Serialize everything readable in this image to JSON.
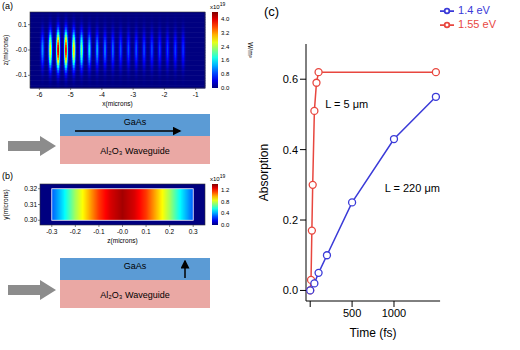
{
  "chart_data": [
    {
      "type": "heatmap",
      "panel": "(a)",
      "xlabel": "x(microns)",
      "ylabel": "z(microns)",
      "xlim": [
        -6.3,
        -0.7
      ],
      "xticks": [
        -6,
        -5,
        -4,
        -3,
        -2,
        -1
      ],
      "ylim": [
        -0.15,
        0.15
      ],
      "yticks": [
        0.1,
        {
          "value": 0,
          "label": "-0.0"
        },
        -0.1
      ],
      "colorbar_label": "W/m³",
      "colorbar_multiplier": "x10",
      "colorbar_exponent": "19",
      "colorbar_range": [
        0,
        4.4
      ],
      "colorbar_ticks": [
        {
          "value": 0,
          "label": "0.0"
        },
        0.8,
        1.6,
        2.4,
        3.2,
        {
          "value": 4,
          "label": "4.0"
        }
      ],
      "fringes": {
        "x": [
          -5.9,
          -5.65,
          -5.4,
          -5.15,
          -4.9,
          -4.65,
          -4.4,
          -4.15,
          -3.9,
          -3.65,
          -3.4,
          -3.15,
          -2.9,
          -2.65,
          -2.4,
          -2.15,
          -1.9,
          -1.65,
          -1.4
        ],
        "values": [
          1.2,
          2.8,
          4.3,
          4.1,
          3.0,
          2.2,
          1.6,
          1.3,
          1.1,
          1.0,
          0.9,
          0.9,
          0.9,
          0.85,
          0.85,
          0.8,
          0.8,
          0.8,
          0.75
        ]
      }
    },
    {
      "type": "heatmap",
      "panel": "(b)",
      "xlabel": "z(microns)",
      "ylabel": "y(microns)",
      "xlim": [
        -0.35,
        0.35
      ],
      "xticks": [
        -0.3,
        -0.2,
        -0.1,
        {
          "value": 0,
          "label": "-0.0"
        },
        0.1,
        0.2,
        0.3
      ],
      "ylim": [
        0.297,
        0.323
      ],
      "yticks": [
        {
          "value": 0.3,
          "label": "0.30"
        },
        0.31,
        0.32
      ],
      "colorbar_multiplier": "x10",
      "colorbar_exponent": "19",
      "colorbar_range": [
        0,
        1.4
      ],
      "colorbar_ticks": [
        {
          "value": 0,
          "label": "0.0"
        },
        0.4,
        0.8,
        1.2
      ],
      "layer_box": {
        "z": [
          -0.3,
          0.3
        ],
        "y": [
          0.3,
          0.32
        ]
      },
      "profile": {
        "z": [
          -0.3,
          -0.25,
          -0.2,
          -0.15,
          -0.1,
          -0.05,
          0,
          0.05,
          0.1,
          0.15,
          0.2,
          0.25,
          0.3
        ],
        "values": [
          0.3,
          0.5,
          0.75,
          0.95,
          1.15,
          1.28,
          1.35,
          1.28,
          1.15,
          0.95,
          0.75,
          0.5,
          0.3
        ]
      }
    },
    {
      "type": "line",
      "panel": "(c)",
      "xlabel": "Time (fs)",
      "ylabel": "Absorption",
      "xlim": [
        -50,
        1550
      ],
      "xticks": [
        0,
        500,
        1000
      ],
      "ylim": [
        -0.03,
        0.7
      ],
      "yticks": [
        {
          "value": 0,
          "label": "0.0"
        },
        0.2,
        0.4,
        0.6
      ],
      "legend": "top-right",
      "grid": false,
      "annotations": [
        "L = 5 μm",
        "L = 220 μm"
      ],
      "series": [
        {
          "name": "1.55 eV",
          "color": "#e8473f",
          "marker": "circle",
          "x": [
            0,
            10,
            20,
            30,
            50,
            75,
            100,
            1500
          ],
          "values": [
            0,
            0.03,
            0.17,
            0.3,
            0.51,
            0.59,
            0.62,
            0.62
          ]
        },
        {
          "name": "1.4 eV",
          "color": "#3a3ad8",
          "marker": "circle",
          "x": [
            0,
            50,
            100,
            200,
            500,
            1000,
            1500
          ],
          "values": [
            0,
            0.02,
            0.05,
            0.1,
            0.25,
            0.43,
            0.55
          ]
        }
      ]
    }
  ],
  "diagrams": [
    {
      "panel": "(a)",
      "layers": [
        "GaAs",
        "Al₂O₃ Waveguide"
      ]
    },
    {
      "panel": "(b)",
      "layers": [
        "GaAs",
        "Al₂O₃ Waveguide"
      ]
    }
  ]
}
